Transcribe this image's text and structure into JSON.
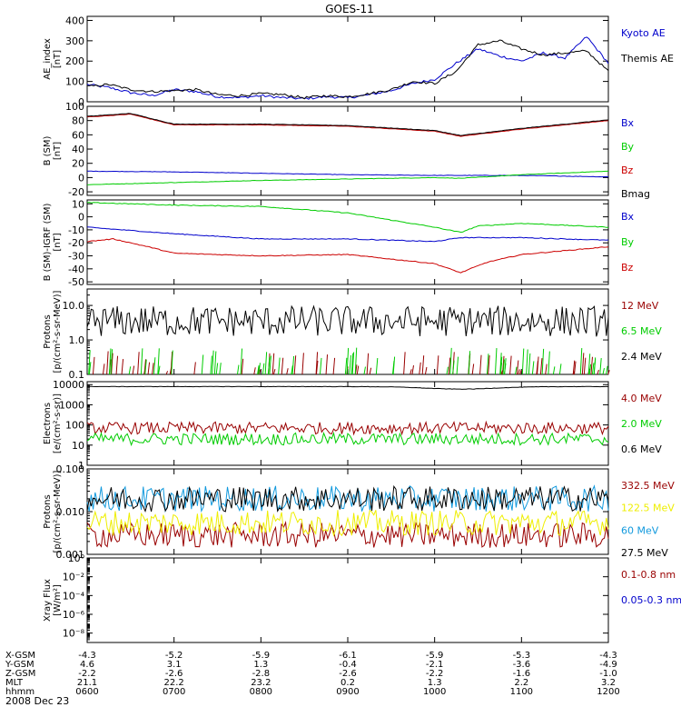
{
  "chart_data": {
    "type": "line",
    "title": "GOES-11",
    "date_label": "2008 Dec 23",
    "time_ticks": [
      "0600",
      "0700",
      "0800",
      "0900",
      "1000",
      "1100",
      "1200"
    ],
    "ephemeris": [
      {
        "label": "X-GSM",
        "values": [
          "-4.3",
          "-5.2",
          "-5.9",
          "-6.1",
          "-5.9",
          "-5.3",
          "-4.3"
        ]
      },
      {
        "label": "Y-GSM",
        "values": [
          "4.6",
          "3.1",
          "1.3",
          "-0.4",
          "-2.1",
          "-3.6",
          "-4.9"
        ]
      },
      {
        "label": "Z-GSM",
        "values": [
          "-2.2",
          "-2.6",
          "-2.8",
          "-2.6",
          "-2.2",
          "-1.6",
          "-1.0"
        ]
      },
      {
        "label": "MLT",
        "values": [
          "21.1",
          "22.2",
          "23.2",
          "0.2",
          "1.3",
          "2.2",
          "3.2"
        ]
      },
      {
        "label": "hhmm",
        "values": [
          "0600",
          "0700",
          "0800",
          "0900",
          "1000",
          "1100",
          "1200"
        ]
      }
    ],
    "panels": [
      {
        "id": "ae",
        "ylabel": [
          "AE_index",
          "[nT]"
        ],
        "scale": "linear",
        "ylim": [
          0,
          420
        ],
        "ticks": [
          0,
          100,
          200,
          300,
          400
        ],
        "tick_labels": [
          "0",
          "100",
          "200",
          "300",
          "400"
        ],
        "series": [
          {
            "name": "Kyoto AE",
            "color": "#0000cc",
            "x": [
              0,
              0.25,
              0.5,
              0.75,
              1,
              1.25,
              1.5,
              1.75,
              2,
              2.25,
              2.5,
              2.75,
              3,
              3.25,
              3.5,
              3.75,
              4,
              4.25,
              4.5,
              4.75,
              5,
              5.25,
              5.5,
              5.75,
              6
            ],
            "y": [
              85,
              70,
              45,
              30,
              60,
              50,
              25,
              20,
              30,
              20,
              15,
              25,
              20,
              35,
              55,
              90,
              110,
              190,
              260,
              225,
              200,
              240,
              215,
              320,
              190
            ]
          },
          {
            "name": "Themis AE",
            "color": "#000000",
            "x": [
              0,
              0.25,
              0.5,
              0.75,
              1,
              1.25,
              1.5,
              1.75,
              2,
              2.25,
              2.5,
              2.75,
              3,
              3.25,
              3.5,
              3.75,
              4,
              4.25,
              4.5,
              4.75,
              5,
              5.25,
              5.5,
              5.75,
              6
            ],
            "y": [
              75,
              85,
              60,
              50,
              55,
              60,
              35,
              30,
              40,
              35,
              20,
              30,
              25,
              40,
              60,
              100,
              90,
              150,
              280,
              300,
              260,
              230,
              240,
              250,
              150
            ]
          }
        ]
      },
      {
        "id": "b",
        "ylabel": [
          "B (SM)",
          "[nT]"
        ],
        "scale": "linear",
        "ylim": [
          -25,
          100
        ],
        "ticks": [
          -20,
          0,
          20,
          40,
          60,
          80,
          100
        ],
        "tick_labels": [
          "-20",
          "0",
          "20",
          "40",
          "60",
          "80",
          "100"
        ],
        "series": [
          {
            "name": "Bx",
            "color": "#0000cc",
            "x": [
              0,
              1,
              2,
              3,
              4,
              5,
              6
            ],
            "y": [
              9,
              8,
              6,
              4,
              3,
              3,
              1
            ]
          },
          {
            "name": "By",
            "color": "#00cc00",
            "x": [
              0,
              1,
              2,
              3,
              4,
              4.3,
              5,
              6
            ],
            "y": [
              -10,
              -7,
              -4,
              -2,
              0,
              -1,
              4,
              9
            ]
          },
          {
            "name": "Bz",
            "color": "#cc0000",
            "x": [
              0,
              0.5,
              1,
              2,
              3,
              4,
              4.3,
              5,
              6
            ],
            "y": [
              85,
              89,
              74,
              74,
              72,
              65,
              58,
              68,
              80
            ]
          },
          {
            "name": "Bmag",
            "color": "#000000",
            "x": [
              0,
              0.5,
              1,
              2,
              3,
              4,
              4.3,
              5,
              6
            ],
            "y": [
              86,
              90,
              75,
              75,
              73,
              66,
              59,
              69,
              81
            ]
          }
        ]
      },
      {
        "id": "bdiff",
        "ylabel": [
          "B (SM)-IGRF (SM)",
          "[nT]"
        ],
        "scale": "linear",
        "ylim": [
          -52,
          13
        ],
        "ticks": [
          -50,
          -40,
          -30,
          -20,
          -10,
          0,
          10
        ],
        "tick_labels": [
          "-50",
          "-40",
          "-30",
          "-20",
          "-10",
          "0",
          "10"
        ],
        "series": [
          {
            "name": "Bx",
            "color": "#0000cc",
            "x": [
              0,
              1,
              2,
              3,
              4,
              4.3,
              5,
              6
            ],
            "y": [
              -8,
              -13,
              -17,
              -17,
              -19,
              -16,
              -16,
              -18
            ]
          },
          {
            "name": "By",
            "color": "#00cc00",
            "x": [
              0,
              1,
              2,
              3,
              4,
              4.3,
              4.5,
              5,
              6
            ],
            "y": [
              11,
              9,
              8,
              3,
              -8,
              -12,
              -7,
              -5,
              -8
            ]
          },
          {
            "name": "Bz",
            "color": "#cc0000",
            "x": [
              0,
              0.3,
              0.7,
              1,
              2,
              3,
              4,
              4.3,
              4.6,
              5,
              6
            ],
            "y": [
              -19,
              -17,
              -23,
              -28,
              -30,
              -29,
              -36,
              -43,
              -35,
              -29,
              -23
            ]
          }
        ]
      },
      {
        "id": "protons_low",
        "ylabel": [
          "Protons",
          "[p/(cm²-s-sr-MeV)]"
        ],
        "scale": "log",
        "ylim": [
          0.1,
          30
        ],
        "ticks": [
          0.1,
          1,
          10
        ],
        "tick_labels": [
          "0.1",
          "1.0",
          "10.0"
        ],
        "series": [
          {
            "name": "12 MeV",
            "color": "#990000",
            "noise": "sparse",
            "base": 0.12
          },
          {
            "name": "6.5 MeV",
            "color": "#00cc00",
            "noise": "sparse",
            "base": 0.15
          },
          {
            "name": "2.4 MeV",
            "color": "#000000",
            "noise": "dense",
            "base": 3.5
          }
        ]
      },
      {
        "id": "electrons",
        "ylabel": [
          "Electrons",
          "[e/(cm²-s-sr)]"
        ],
        "scale": "log",
        "ylim": [
          1,
          14000
        ],
        "ticks": [
          1,
          10,
          100,
          1000,
          10000
        ],
        "tick_labels": [
          "1",
          "10",
          "100",
          "1000",
          "10000"
        ],
        "series": [
          {
            "name": "4.0 MeV",
            "color": "#990000",
            "noise": "dense",
            "base": 70
          },
          {
            "name": "2.0 MeV",
            "color": "#00cc00",
            "noise": "dense",
            "base": 20
          },
          {
            "name": "0.6 MeV",
            "color": "#000000",
            "noise": "smooth",
            "base": 8000
          }
        ]
      },
      {
        "id": "protons_high",
        "ylabel": [
          "Protons",
          "[p/(cm²-s-sr-MeV)]"
        ],
        "scale": "log",
        "ylim": [
          0.001,
          0.1
        ],
        "ticks": [
          0.001,
          0.01,
          0.1
        ],
        "tick_labels": [
          "0.001",
          "0.010",
          "0.100"
        ],
        "series": [
          {
            "name": "332.5 MeV",
            "color": "#990000",
            "noise": "dense",
            "base": 0.0028
          },
          {
            "name": "122.5 MeV",
            "color": "#eeee00",
            "noise": "dense",
            "base": 0.0055
          },
          {
            "name": "60 MeV",
            "color": "#1199dd",
            "noise": "dense",
            "base": 0.02
          },
          {
            "name": "27.5 MeV",
            "color": "#000000",
            "noise": "dense",
            "base": 0.02
          }
        ]
      },
      {
        "id": "xray",
        "ylabel": [
          "Xray Flux",
          "[W/m²]"
        ],
        "scale": "log",
        "ylim": [
          1e-09,
          1
        ],
        "ticks": [
          1e-08,
          1e-06,
          0.0001,
          0.01,
          1
        ],
        "tick_labels": [
          "10⁻⁸",
          "10⁻⁶",
          "10⁻⁴",
          "10⁻²",
          "10⁰"
        ],
        "series": [
          {
            "name": "0.1-0.8 nm",
            "color": "#990000",
            "noise": "none"
          },
          {
            "name": "0.05-0.3 nm",
            "color": "#0000cc",
            "noise": "none"
          }
        ]
      }
    ]
  }
}
